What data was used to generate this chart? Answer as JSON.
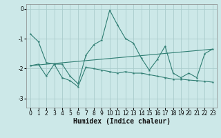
{
  "xlabel": "Humidex (Indice chaleur)",
  "background_color": "#cce8e8",
  "grid_color": "#aacccc",
  "line_color": "#2e7d72",
  "xlim": [
    -0.5,
    23.5
  ],
  "ylim": [
    -3.3,
    0.15
  ],
  "yticks": [
    0,
    -1,
    -2,
    -3
  ],
  "xticks": [
    0,
    1,
    2,
    3,
    4,
    5,
    6,
    7,
    8,
    9,
    10,
    11,
    12,
    13,
    14,
    15,
    16,
    17,
    18,
    19,
    20,
    21,
    22,
    23
  ],
  "series1_x": [
    0,
    1,
    2,
    3,
    4,
    5,
    6,
    7,
    8,
    9,
    10,
    11,
    12,
    13,
    14,
    15,
    16,
    17,
    18,
    19,
    20,
    21,
    22,
    23
  ],
  "series1_y": [
    -0.85,
    -1.1,
    -1.8,
    -1.85,
    -1.85,
    -2.25,
    -2.5,
    -1.55,
    -1.2,
    -1.05,
    -0.05,
    -0.55,
    -1.0,
    -1.15,
    -1.65,
    -2.05,
    -1.7,
    -1.25,
    -2.15,
    -2.3,
    -2.15,
    -2.3,
    -1.5,
    -1.35
  ],
  "series2_x": [
    0,
    1,
    2,
    3,
    4,
    5,
    6,
    7,
    8,
    9,
    10,
    11,
    12,
    13,
    14,
    15,
    16,
    17,
    18,
    19,
    20,
    21,
    22,
    23
  ],
  "series2_y": [
    -1.9,
    -1.85,
    -2.25,
    -1.85,
    -2.3,
    -2.4,
    -2.6,
    -1.95,
    -2.0,
    -2.05,
    -2.1,
    -2.15,
    -2.1,
    -2.15,
    -2.15,
    -2.2,
    -2.25,
    -2.3,
    -2.35,
    -2.35,
    -2.38,
    -2.4,
    -2.42,
    -2.45
  ],
  "series3_x": [
    0,
    23
  ],
  "series3_y": [
    -1.9,
    -1.35
  ],
  "tick_fontsize": 5.5,
  "xlabel_fontsize": 7
}
